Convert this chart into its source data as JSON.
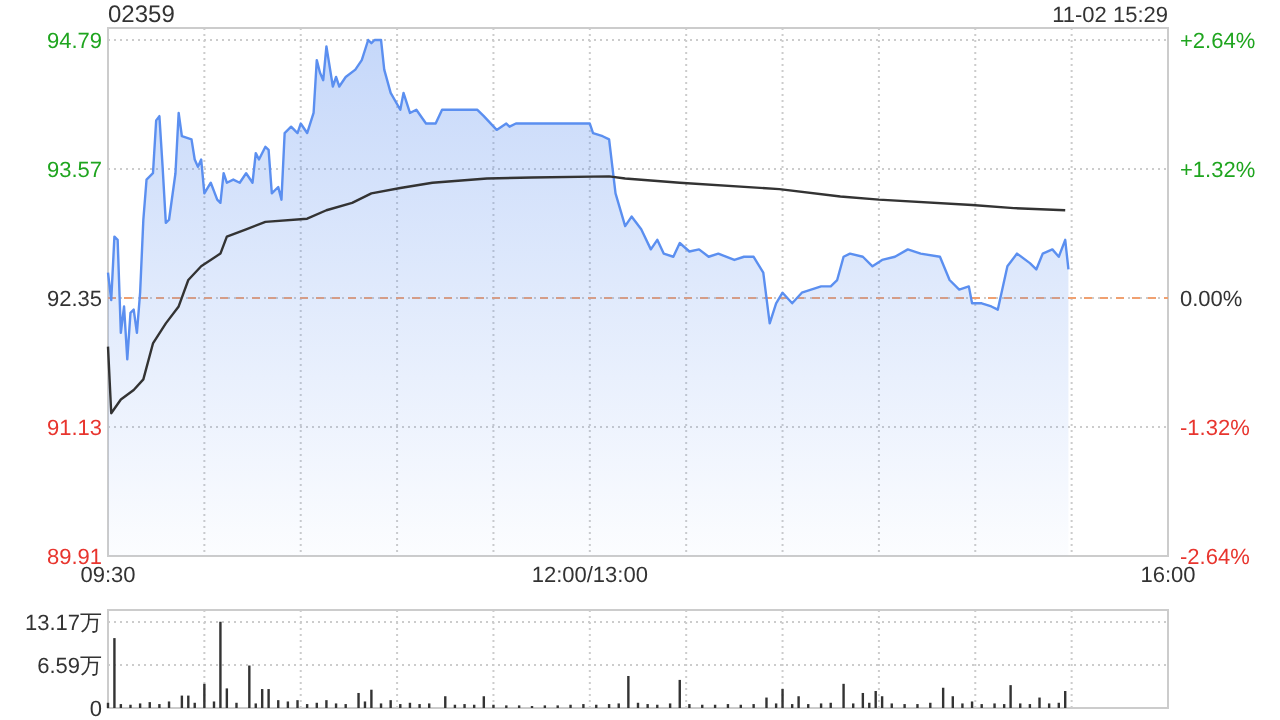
{
  "chart_data": [
    {
      "type": "area",
      "title": "02359",
      "annotations": [
        "11-02 15:29"
      ],
      "categories": [
        "09:30",
        null,
        null,
        null,
        null,
        null,
        null,
        null,
        null,
        null,
        null,
        null,
        null,
        null,
        null,
        null,
        null,
        null,
        null,
        null,
        null,
        null,
        null,
        null,
        null,
        null,
        null,
        null,
        null,
        null,
        null,
        null,
        null,
        null,
        null,
        null,
        null,
        null,
        null,
        null,
        null,
        null,
        null,
        null,
        null,
        null,
        null,
        null,
        null,
        null,
        null,
        null,
        null,
        null,
        null,
        null,
        null,
        null,
        null,
        null,
        null,
        null,
        null,
        null,
        null,
        null,
        null,
        null,
        null,
        null,
        null,
        null,
        null,
        null,
        null,
        null,
        null,
        null,
        null,
        null,
        null,
        null,
        null,
        null,
        null,
        null,
        null,
        null,
        null,
        null,
        null,
        null,
        null,
        null,
        null,
        null,
        null,
        null,
        null,
        null,
        null,
        null,
        null,
        null,
        null,
        null,
        null,
        null,
        null,
        null,
        null,
        null,
        null,
        null,
        null,
        null,
        null,
        null,
        null,
        null,
        null,
        null,
        null,
        null,
        null,
        null,
        null,
        null,
        null,
        null,
        null,
        null,
        null,
        null,
        null,
        null,
        null,
        null,
        null,
        null,
        null,
        null,
        null,
        null,
        null,
        null,
        null,
        null,
        null,
        null,
        "12:00/13:00",
        null,
        null,
        null,
        null,
        null,
        null,
        null,
        null,
        null,
        null,
        null,
        null,
        null,
        null,
        null,
        null,
        null,
        null,
        null,
        null,
        null,
        null,
        null,
        null,
        null,
        null,
        null,
        null,
        null,
        null,
        null,
        null,
        null,
        null,
        null,
        null,
        null,
        null,
        null,
        null,
        null,
        null,
        null,
        null,
        null,
        null,
        null,
        null,
        null,
        null,
        null,
        null,
        null,
        null,
        null,
        null,
        null,
        null,
        null,
        null,
        null,
        null,
        null,
        null,
        null,
        null,
        null,
        null,
        null,
        null,
        null,
        null,
        null,
        null,
        null,
        null,
        null,
        null,
        null,
        null,
        null,
        null,
        null,
        null,
        null,
        null,
        null,
        null,
        null,
        null,
        null,
        null,
        null,
        null,
        null,
        null,
        null,
        null,
        null,
        null,
        null,
        null,
        null,
        null,
        null,
        null,
        null,
        null,
        null,
        null,
        null,
        null,
        null,
        null,
        null,
        null,
        null,
        null,
        null,
        null,
        null,
        null,
        null,
        null,
        null,
        null,
        null,
        null,
        null,
        null,
        null,
        null,
        null,
        null,
        null,
        null,
        null,
        null,
        null,
        null,
        null,
        null,
        null,
        null,
        null,
        null,
        null,
        null,
        null,
        null,
        null,
        null,
        null,
        null,
        null,
        null,
        null,
        null,
        null,
        null,
        null,
        null,
        null,
        null,
        null,
        null,
        null,
        null,
        null,
        null,
        null,
        null,
        null,
        null,
        null,
        null,
        null,
        null,
        null,
        "16:00"
      ],
      "ylim": [
        89.91,
        94.79
      ],
      "yticks": [
        89.91,
        91.13,
        92.35,
        93.57,
        94.79
      ],
      "y2lim": [
        -2.64,
        2.64
      ],
      "y2ticks": [
        {
          "value": -2.64,
          "label": "-2.64%"
        },
        {
          "value": -1.32,
          "label": "-1.32%"
        },
        {
          "value": 0,
          "label": "0.00%"
        },
        {
          "value": 1.32,
          "label": "+1.32%"
        },
        {
          "value": 2.64,
          "label": "+2.64%"
        }
      ],
      "grid": true,
      "ref_lines": [
        {
          "axis": "y",
          "value": 92.35,
          "color": "#f0a070",
          "line_style": "dashed"
        }
      ],
      "series": [
        {
          "type": "area",
          "color": "#5b8ff0",
          "values": [
            92.59,
            92.33,
            92.93,
            92.9,
            92.02,
            92.27,
            91.77,
            92.21,
            92.24,
            92.02,
            92.4,
            93.09,
            93.47,
            null,
            93.53,
            94.03,
            94.07,
            93.59,
            93.06,
            93.09,
            null,
            93.53,
            94.1,
            93.88,
            null,
            null,
            93.85,
            93.66,
            93.59,
            93.66,
            93.34,
            null,
            93.44,
            null,
            93.28,
            93.25,
            93.53,
            93.44,
            null,
            93.47,
            null,
            93.44,
            null,
            93.53,
            null,
            93.44,
            93.72,
            93.66,
            null,
            93.78,
            93.75,
            93.34,
            null,
            93.4,
            93.28,
            93.91,
            null,
            93.97,
            null,
            93.91,
            94.0,
            null,
            93.91,
            null,
            94.1,
            94.6,
            94.48,
            94.41,
            94.73,
            null,
            94.35,
            94.44,
            94.35,
            null,
            94.44,
            null,
            null,
            94.51,
            null,
            94.6,
            null,
            94.79,
            94.76,
            94.79,
            null,
            94.79,
            94.51,
            null,
            94.29,
            null,
            null,
            94.13,
            94.29,
            null,
            94.1,
            null,
            94.13,
            null,
            null,
            94.0,
            null,
            null,
            94.0,
            null,
            94.13,
            null,
            null,
            null,
            null,
            null,
            null,
            null,
            null,
            null,
            null,
            94.13,
            null,
            94.07,
            null,
            null,
            null,
            93.94,
            null,
            null,
            94.0,
            93.97,
            null,
            94.0,
            null,
            null,
            null,
            null,
            null,
            null,
            null,
            null,
            null,
            null,
            null,
            null,
            null,
            null,
            null,
            null,
            null,
            null,
            null,
            null,
            null,
            94.0,
            94.0,
            93.91,
            null,
            null,
            93.88,
            null,
            93.85,
            null,
            93.34,
            null,
            null,
            93.03,
            null,
            93.12,
            null,
            null,
            93.0,
            null,
            null,
            92.81,
            null,
            92.9,
            null,
            92.77,
            null,
            null,
            92.74,
            null,
            92.87,
            null,
            null,
            92.79,
            null,
            null,
            92.81,
            null,
            null,
            92.74,
            null,
            null,
            92.77,
            null,
            null,
            null,
            null,
            92.71,
            null,
            null,
            92.74,
            null,
            null,
            92.74,
            null,
            null,
            92.59,
            null,
            92.11,
            null,
            92.3,
            null,
            92.4,
            null,
            null,
            92.3,
            null,
            null,
            92.4,
            null,
            null,
            null,
            null,
            null,
            92.46,
            null,
            null,
            92.46,
            null,
            92.52,
            null,
            92.74,
            null,
            92.77,
            null,
            null,
            null,
            92.74,
            null,
            null,
            92.65,
            null,
            null,
            92.71,
            null,
            null,
            null,
            92.74,
            null,
            null,
            null,
            92.81,
            null,
            null,
            null,
            92.77,
            null,
            null,
            null,
            null,
            null,
            92.74,
            null,
            null,
            92.52,
            null,
            null,
            92.43,
            null,
            null,
            92.46,
            92.3,
            null,
            null,
            92.3,
            null,
            null,
            92.27,
            null,
            92.24,
            null,
            null,
            92.65,
            null,
            null,
            92.77,
            null,
            null,
            null,
            92.68,
            null,
            92.62,
            null,
            92.77,
            null,
            null,
            92.81,
            null,
            92.74,
            null,
            92.9,
            92.62,
            null,
            null,
            null,
            null,
            null,
            null,
            null,
            null,
            null,
            null,
            null,
            null,
            null,
            null,
            null,
            null,
            null,
            null,
            null,
            null,
            null,
            null,
            null,
            null,
            null,
            null,
            null,
            null,
            null,
            null,
            null
          ]
        },
        {
          "type": "line",
          "color": "#333333",
          "values": [
            91.89,
            91.26,
            null,
            null,
            91.39,
            null,
            null,
            null,
            91.48,
            null,
            null,
            91.58,
            null,
            null,
            91.92,
            null,
            null,
            null,
            92.11,
            null,
            null,
            null,
            92.27,
            null,
            null,
            92.52,
            null,
            null,
            null,
            92.65,
            null,
            null,
            null,
            null,
            null,
            92.77,
            null,
            92.93,
            null,
            null,
            null,
            null,
            null,
            93.0,
            null,
            null,
            null,
            null,
            null,
            93.07,
            null,
            null,
            null,
            null,
            null,
            null,
            null,
            null,
            null,
            null,
            null,
            null,
            93.1,
            null,
            null,
            null,
            null,
            null,
            93.18,
            null,
            null,
            null,
            null,
            null,
            null,
            null,
            93.25,
            null,
            null,
            null,
            null,
            null,
            93.34,
            null,
            null,
            null,
            null,
            null,
            null,
            null,
            null,
            93.39,
            null,
            null,
            null,
            null,
            null,
            null,
            null,
            null,
            null,
            93.44,
            null,
            null,
            null,
            null,
            null,
            null,
            null,
            null,
            null,
            null,
            null,
            null,
            null,
            null,
            null,
            null,
            93.48,
            null,
            null,
            null,
            null,
            null,
            null,
            null,
            null,
            null,
            null,
            null,
            null,
            null,
            93.49,
            null,
            null,
            null,
            null,
            null,
            null,
            null,
            null,
            null,
            null,
            null,
            null,
            null,
            null,
            null,
            null,
            null,
            null,
            null,
            null,
            null,
            null,
            null,
            93.5,
            null,
            null,
            null,
            null,
            93.48,
            null,
            null,
            null,
            null,
            null,
            null,
            null,
            null,
            null,
            null,
            null,
            null,
            null,
            null,
            null,
            null,
            93.44,
            null,
            null,
            null,
            null,
            null,
            null,
            null,
            null,
            null,
            null,
            null,
            null,
            null,
            null,
            null,
            null,
            null,
            null,
            null,
            null,
            null,
            null,
            null,
            null,
            null,
            null,
            null,
            null,
            null,
            null,
            93.38,
            null,
            null,
            null,
            null,
            null,
            null,
            null,
            null,
            null,
            null,
            null,
            null,
            null,
            null,
            null,
            null,
            null,
            null,
            93.31,
            null,
            null,
            null,
            null,
            null,
            null,
            null,
            null,
            null,
            null,
            null,
            93.28,
            null,
            null,
            null,
            null,
            null,
            null,
            null,
            null,
            null,
            null,
            null,
            null,
            null,
            null,
            null,
            null,
            null,
            null,
            null,
            null,
            null,
            null,
            null,
            null,
            null,
            null,
            null,
            null,
            93.23,
            null,
            null,
            null,
            null,
            null,
            null,
            null,
            null,
            null,
            null,
            null,
            null,
            93.2,
            null,
            null,
            null,
            null,
            null,
            null,
            null,
            null,
            null,
            null,
            null,
            null,
            null,
            null,
            null,
            93.18,
            null,
            null,
            null,
            null,
            null,
            null,
            null,
            null,
            null,
            null,
            null,
            null,
            null,
            null,
            null,
            null,
            null,
            null,
            null,
            null,
            null,
            null,
            null,
            null,
            null,
            null,
            null,
            null,
            null,
            null,
            null,
            null
          ]
        }
      ]
    },
    {
      "type": "bar",
      "color": "#333333",
      "tick_labels": "y",
      "grid": true,
      "categories": [
        null,
        null,
        null,
        null,
        null,
        null,
        null,
        null,
        null,
        null,
        null,
        null,
        null,
        null,
        null,
        null,
        null,
        null,
        null,
        null,
        null,
        null,
        null,
        null,
        null,
        null,
        null,
        null,
        null,
        null,
        null,
        null,
        null,
        null,
        null,
        null,
        null,
        null,
        null,
        null,
        null,
        null,
        null,
        null,
        null,
        null,
        null,
        null,
        null,
        null,
        null,
        null,
        null,
        null,
        null,
        null,
        null,
        null,
        null,
        null,
        null,
        null,
        null,
        null,
        null,
        null,
        null,
        null,
        null,
        null,
        null,
        null,
        null,
        null,
        null,
        null,
        null,
        null,
        null,
        null,
        null,
        null,
        null,
        null,
        null,
        null,
        null,
        null,
        null,
        null,
        null,
        null,
        null,
        null,
        null,
        null,
        null,
        null,
        null,
        null,
        null,
        null,
        null,
        null,
        null,
        null,
        null,
        null,
        null,
        null,
        null,
        null,
        null,
        null,
        null,
        null,
        null,
        null,
        null,
        null,
        null,
        null,
        null,
        null,
        null,
        null,
        null,
        null,
        null,
        null,
        null,
        null,
        null,
        null,
        null,
        null,
        null,
        null,
        null,
        null,
        null,
        null,
        null,
        null,
        null,
        null,
        null,
        null,
        null,
        null,
        null,
        null,
        null,
        null,
        null,
        null,
        null,
        null,
        null,
        null,
        null,
        null,
        null,
        null,
        null,
        null,
        null,
        null,
        null,
        null,
        null,
        null,
        null,
        null,
        null,
        null,
        null,
        null,
        null,
        null,
        null,
        null,
        null,
        null,
        null,
        null,
        null,
        null,
        null,
        null,
        null,
        null,
        null,
        null,
        null,
        null,
        null,
        null,
        null,
        null,
        null,
        null,
        null,
        null,
        null,
        null,
        null,
        null,
        null,
        null,
        null,
        null,
        null,
        null,
        null,
        null,
        null,
        null,
        null,
        null,
        null,
        null,
        null,
        null,
        null,
        null,
        null,
        null,
        null,
        null,
        null,
        null,
        null,
        null,
        null,
        null,
        null,
        null,
        null,
        null,
        null,
        null,
        null,
        null,
        null,
        null,
        null,
        null,
        null,
        null,
        null,
        null,
        null,
        null,
        null,
        null,
        null,
        null,
        null,
        null,
        null,
        null,
        null,
        null,
        null,
        null,
        null,
        null,
        null,
        null,
        null,
        null,
        null,
        null,
        null,
        null,
        null,
        null,
        null,
        null,
        null,
        null,
        null,
        null,
        null,
        null,
        null,
        null,
        null,
        null,
        null,
        null,
        null,
        null,
        null,
        null,
        null,
        null,
        null,
        null,
        null,
        null,
        null,
        null,
        null,
        null,
        null,
        null,
        null,
        null,
        null,
        null,
        null,
        null,
        null,
        null,
        null,
        null,
        null,
        null,
        null,
        null,
        null,
        null,
        null,
        null,
        null,
        null,
        null,
        null,
        null
      ],
      "ylim": [
        0,
        15
      ],
      "yticks": [
        0,
        {
          "value": 6.59,
          "label": "6.59万"
        },
        {
          "value": 13.17,
          "label": "13.17万"
        }
      ],
      "values": [
        0.8,
        null,
        10.7,
        null,
        0.6,
        null,
        null,
        0.5,
        null,
        null,
        0.7,
        null,
        null,
        0.9,
        null,
        null,
        0.6,
        null,
        null,
        1.0,
        null,
        null,
        null,
        1.9,
        null,
        1.9,
        null,
        0.8,
        null,
        null,
        3.7,
        null,
        null,
        1.0,
        null,
        13.2,
        null,
        3.0,
        null,
        null,
        0.8,
        null,
        null,
        null,
        6.5,
        null,
        0.7,
        null,
        2.9,
        null,
        2.9,
        null,
        null,
        1.2,
        null,
        null,
        1.0,
        null,
        null,
        1.2,
        null,
        null,
        0.6,
        null,
        null,
        0.8,
        null,
        null,
        1.2,
        null,
        null,
        0.7,
        null,
        null,
        0.6,
        null,
        null,
        null,
        2.3,
        null,
        1.0,
        null,
        2.8,
        null,
        null,
        0.7,
        null,
        null,
        1.2,
        null,
        null,
        0.6,
        null,
        null,
        0.8,
        null,
        null,
        0.6,
        null,
        null,
        0.7,
        null,
        null,
        null,
        null,
        1.8,
        null,
        null,
        0.5,
        null,
        null,
        0.6,
        null,
        null,
        0.5,
        null,
        null,
        1.8,
        null,
        null,
        0.5,
        null,
        null,
        null,
        0.4,
        null,
        null,
        null,
        0.4,
        null,
        null,
        null,
        0.3,
        null,
        null,
        null,
        0.4,
        null,
        null,
        null,
        0.4,
        null,
        null,
        null,
        0.5,
        null,
        null,
        null,
        0.6,
        null,
        null,
        null,
        0.5,
        null,
        null,
        null,
        0.6,
        null,
        null,
        0.7,
        null,
        null,
        4.9,
        null,
        null,
        0.8,
        null,
        null,
        0.6,
        null,
        null,
        0.5,
        null,
        null,
        null,
        0.7,
        null,
        null,
        4.3,
        null,
        null,
        0.6,
        null,
        null,
        null,
        0.5,
        null,
        null,
        null,
        0.5,
        null,
        null,
        null,
        0.6,
        null,
        null,
        null,
        0.5,
        null,
        null,
        null,
        0.6,
        null,
        null,
        null,
        1.6,
        null,
        null,
        0.7,
        null,
        2.9,
        null,
        null,
        0.6,
        null,
        1.8,
        null,
        null,
        0.6,
        null,
        null,
        null,
        0.7,
        null,
        null,
        0.8,
        null,
        null,
        null,
        3.7,
        null,
        null,
        0.7,
        null,
        null,
        2.3,
        null,
        0.8,
        null,
        2.6,
        null,
        1.8,
        null,
        null,
        0.7,
        null,
        null,
        null,
        0.6,
        null,
        null,
        null,
        0.6,
        null,
        null,
        null,
        0.8,
        null,
        null,
        null,
        3.1,
        null,
        null,
        1.8,
        null,
        null,
        0.7,
        null,
        null,
        1.0,
        null,
        null,
        0.6,
        null,
        null,
        null,
        0.7,
        null,
        null,
        0.6,
        null,
        3.5,
        null,
        null,
        0.7,
        null,
        null,
        0.6,
        null,
        null,
        1.6,
        null,
        null,
        0.7,
        null,
        null,
        0.8,
        null,
        2.6,
        null,
        null,
        null,
        null,
        null,
        null,
        null,
        null,
        null,
        null,
        null,
        null,
        null,
        null,
        null,
        null,
        null,
        null,
        null,
        null,
        null,
        null,
        null,
        null,
        null,
        null,
        null,
        null,
        null,
        null,
        null,
        null
      ]
    }
  ]
}
